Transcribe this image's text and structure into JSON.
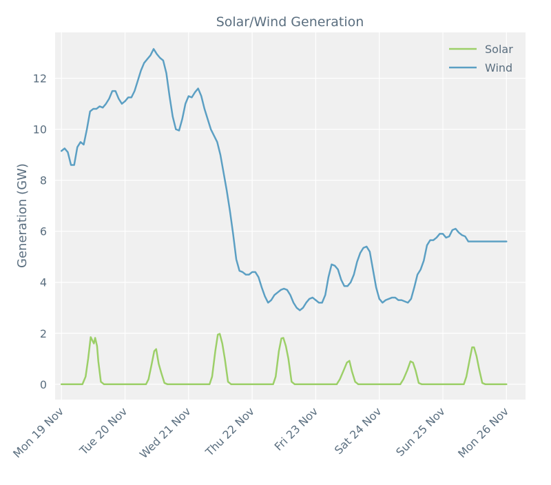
{
  "chart_data": {
    "type": "line",
    "title": "Solar/Wind Generation",
    "xlabel": "",
    "ylabel": "Generation (GW)",
    "xlim": [
      -0.1,
      7.3
    ],
    "ylim": [
      -0.6,
      13.8
    ],
    "grid": true,
    "legend_position": "top-right",
    "x_tick_values": [
      0,
      1,
      2,
      3,
      4,
      5,
      6,
      7
    ],
    "x_tick_labels": [
      "Mon 19 Nov",
      "Tue 20 Nov",
      "Wed 21 Nov",
      "Thu 22 Nov",
      "Fri 23 Nov",
      "Sat 24 Nov",
      "Sun 25 Nov",
      "Mon 26 Nov"
    ],
    "y_ticks": [
      0,
      2,
      4,
      6,
      8,
      10,
      12
    ],
    "y_tick_labels": [
      "0",
      "2",
      "4",
      "6",
      "8",
      "10",
      "12"
    ],
    "colors": {
      "Solar": "#9ccf68",
      "Wind": "#5b9fc3",
      "background": "#f0f0f0",
      "text": "#5a6e7f"
    },
    "series": [
      {
        "name": "Solar",
        "x": [
          0,
          0.33,
          0.38,
          0.42,
          0.46,
          0.48,
          0.51,
          0.53,
          0.56,
          0.58,
          0.62,
          0.67,
          1.0,
          1.33,
          1.37,
          1.42,
          1.46,
          1.49,
          1.53,
          1.57,
          1.62,
          1.67,
          2.0,
          2.33,
          2.37,
          2.42,
          2.46,
          2.49,
          2.53,
          2.57,
          2.62,
          2.67,
          3.0,
          3.33,
          3.37,
          3.42,
          3.46,
          3.49,
          3.53,
          3.57,
          3.62,
          3.67,
          4.0,
          4.33,
          4.38,
          4.44,
          4.49,
          4.53,
          4.57,
          4.62,
          4.67,
          5.0,
          5.33,
          5.38,
          5.44,
          5.49,
          5.53,
          5.57,
          5.62,
          5.67,
          6.0,
          6.33,
          6.37,
          6.42,
          6.46,
          6.49,
          6.53,
          6.57,
          6.62,
          6.67,
          7.0
        ],
        "values": [
          0,
          0,
          0.3,
          1.0,
          1.85,
          1.75,
          1.6,
          1.82,
          1.5,
          0.9,
          0.1,
          0,
          0,
          0,
          0.2,
          0.8,
          1.3,
          1.38,
          0.8,
          0.45,
          0.05,
          0,
          0,
          0,
          0.3,
          1.3,
          1.95,
          1.98,
          1.6,
          1.0,
          0.1,
          0,
          0,
          0,
          0.3,
          1.3,
          1.8,
          1.82,
          1.5,
          1.0,
          0.1,
          0,
          0,
          0,
          0.2,
          0.55,
          0.85,
          0.92,
          0.5,
          0.1,
          0,
          0,
          0,
          0.2,
          0.55,
          0.9,
          0.85,
          0.55,
          0.05,
          0,
          0,
          0,
          0.3,
          0.95,
          1.45,
          1.45,
          1.1,
          0.6,
          0.05,
          0,
          0
        ]
      },
      {
        "name": "Wind",
        "x": [
          0,
          0.05,
          0.1,
          0.15,
          0.2,
          0.25,
          0.3,
          0.35,
          0.4,
          0.45,
          0.5,
          0.55,
          0.6,
          0.65,
          0.7,
          0.75,
          0.8,
          0.85,
          0.9,
          0.95,
          1.0,
          1.05,
          1.1,
          1.15,
          1.2,
          1.25,
          1.3,
          1.35,
          1.4,
          1.45,
          1.5,
          1.55,
          1.6,
          1.65,
          1.7,
          1.75,
          1.8,
          1.85,
          1.9,
          1.95,
          2.0,
          2.05,
          2.1,
          2.15,
          2.2,
          2.25,
          2.3,
          2.35,
          2.4,
          2.45,
          2.5,
          2.55,
          2.6,
          2.65,
          2.7,
          2.75,
          2.8,
          2.85,
          2.9,
          2.95,
          3.0,
          3.05,
          3.1,
          3.15,
          3.2,
          3.25,
          3.3,
          3.35,
          3.4,
          3.45,
          3.5,
          3.55,
          3.6,
          3.65,
          3.7,
          3.75,
          3.8,
          3.85,
          3.9,
          3.95,
          4.0,
          4.05,
          4.1,
          4.15,
          4.2,
          4.25,
          4.3,
          4.35,
          4.4,
          4.45,
          4.5,
          4.55,
          4.6,
          4.65,
          4.7,
          4.75,
          4.8,
          4.85,
          4.9,
          4.95,
          5.0,
          5.05,
          5.1,
          5.15,
          5.2,
          5.25,
          5.3,
          5.35,
          5.4,
          5.45,
          5.5,
          5.55,
          5.6,
          5.65,
          5.7,
          5.75,
          5.8,
          5.85,
          5.9,
          5.95,
          6.0,
          6.05,
          6.1,
          6.15,
          6.2,
          6.25,
          6.3,
          6.35,
          6.4,
          6.45,
          6.5,
          6.55,
          6.6,
          6.65,
          6.7,
          6.75,
          6.8,
          6.85,
          6.9,
          6.95,
          7.0
        ],
        "values": [
          9.15,
          9.25,
          9.1,
          8.6,
          8.6,
          9.3,
          9.5,
          9.4,
          10.0,
          10.7,
          10.8,
          10.8,
          10.9,
          10.85,
          11.0,
          11.2,
          11.5,
          11.5,
          11.2,
          11.0,
          11.1,
          11.25,
          11.25,
          11.5,
          11.9,
          12.3,
          12.6,
          12.75,
          12.9,
          13.15,
          12.95,
          12.8,
          12.7,
          12.2,
          11.3,
          10.5,
          10.0,
          9.95,
          10.4,
          11.0,
          11.3,
          11.25,
          11.45,
          11.6,
          11.3,
          10.8,
          10.4,
          10.0,
          9.75,
          9.5,
          9.0,
          8.3,
          7.6,
          6.8,
          5.9,
          4.9,
          4.45,
          4.4,
          4.3,
          4.3,
          4.4,
          4.4,
          4.2,
          3.8,
          3.45,
          3.2,
          3.3,
          3.5,
          3.6,
          3.7,
          3.75,
          3.7,
          3.5,
          3.2,
          3.0,
          2.9,
          3.0,
          3.2,
          3.35,
          3.4,
          3.3,
          3.2,
          3.2,
          3.5,
          4.2,
          4.7,
          4.65,
          4.5,
          4.1,
          3.85,
          3.85,
          4.0,
          4.3,
          4.8,
          5.15,
          5.35,
          5.4,
          5.2,
          4.5,
          3.8,
          3.35,
          3.2,
          3.3,
          3.35,
          3.4,
          3.4,
          3.3,
          3.3,
          3.25,
          3.2,
          3.35,
          3.8,
          4.3,
          4.5,
          4.85,
          5.45,
          5.65,
          5.65,
          5.75,
          5.9,
          5.9,
          5.75,
          5.8,
          6.05,
          6.1,
          5.95,
          5.85,
          5.8,
          5.6,
          5.6,
          5.6,
          5.6,
          5.6,
          5.6,
          5.6,
          5.6,
          5.6,
          5.6,
          5.6,
          5.6,
          5.6
        ]
      }
    ]
  }
}
